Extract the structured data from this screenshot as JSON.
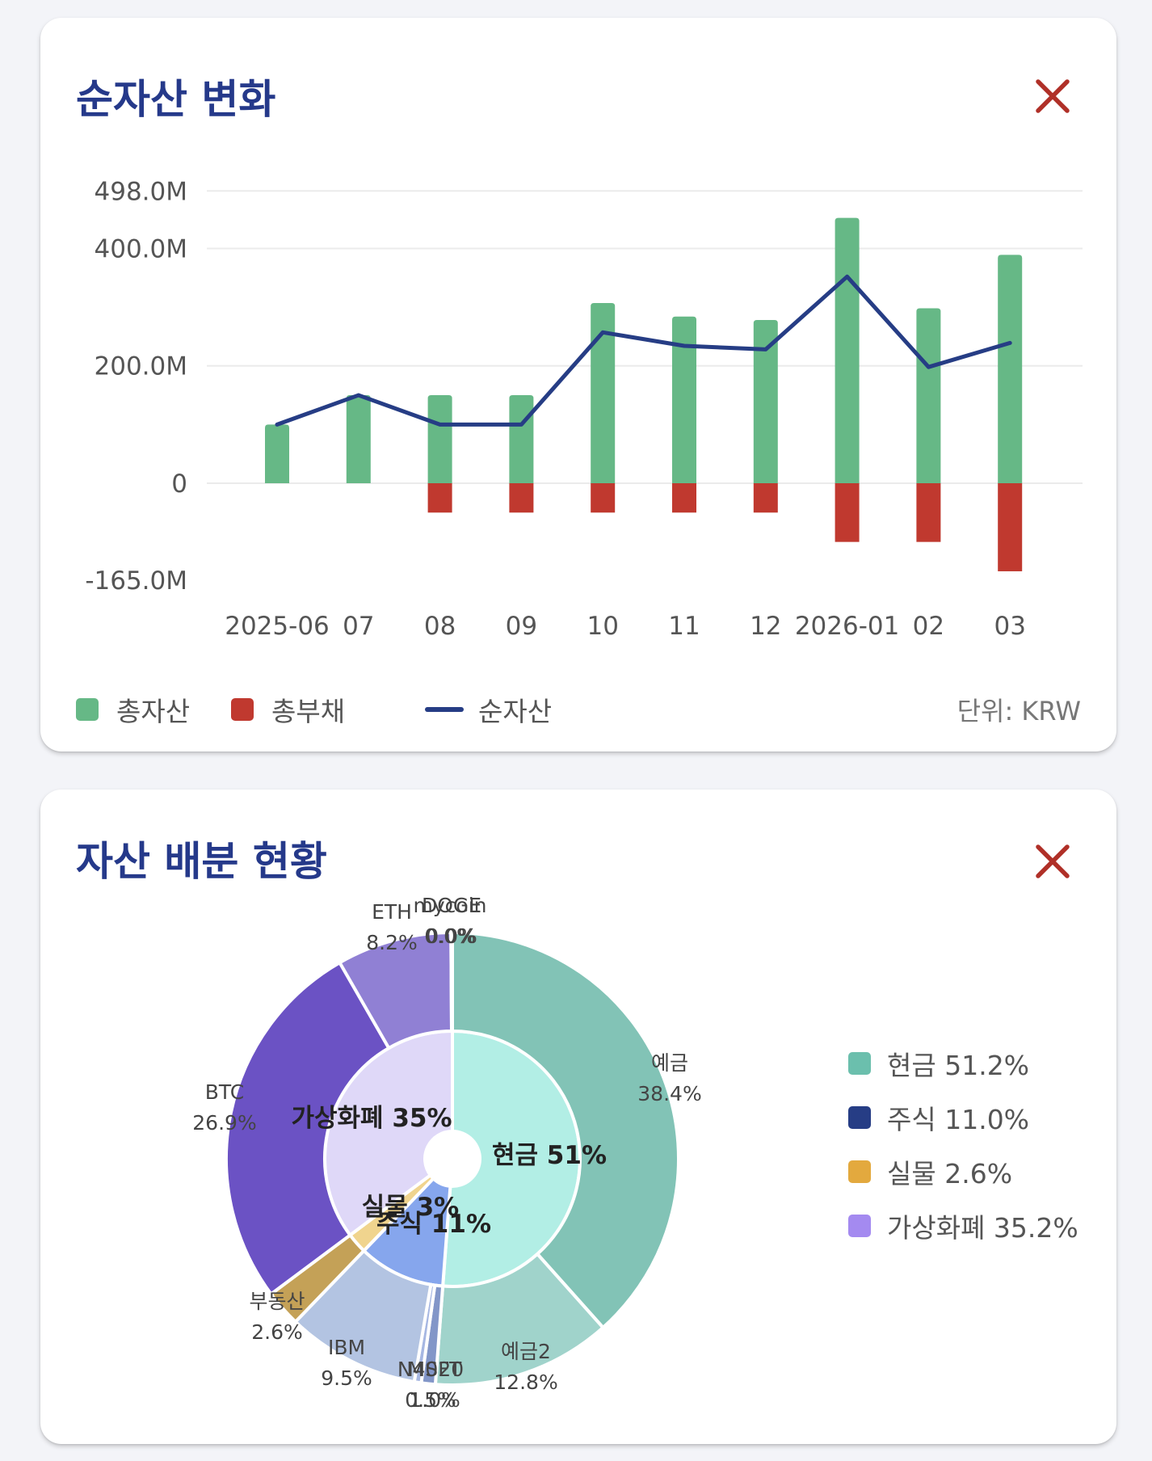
{
  "net_worth_card": {
    "title": "순자산 변화",
    "close_icon": "close-icon",
    "legend": [
      {
        "label": "총자산",
        "color": "#66b886",
        "kind": "box"
      },
      {
        "label": "총부채",
        "color": "#c0392f",
        "kind": "box"
      },
      {
        "label": "순자산",
        "color": "#263d85",
        "kind": "line"
      }
    ],
    "unit": "단위: KRW"
  },
  "allocation_card": {
    "title": "자산 배분 현황",
    "close_icon": "close-icon",
    "legend": [
      {
        "label": "현금 51.2%",
        "color": "#6bbfad"
      },
      {
        "label": "주식 11.0%",
        "color": "#263d85"
      },
      {
        "label": "실물 2.6%",
        "color": "#e3a93e"
      },
      {
        "label": "가상화폐 35.2%",
        "color": "#a48af0"
      }
    ]
  },
  "chart_data": [
    {
      "type": "bar",
      "title": "순자산 변화",
      "categories": [
        "2025-06",
        "07",
        "08",
        "09",
        "10",
        "11",
        "12",
        "2026-01",
        "02",
        "03"
      ],
      "y_tick_labels": [
        "498.0M",
        "400.0M",
        "200.0M",
        "0",
        "-165.0M"
      ],
      "y_ticks": [
        498,
        400,
        200,
        0,
        -165
      ],
      "ylim": [
        -165,
        498
      ],
      "y_unit": "M",
      "grid": true,
      "legend_position": "bottom-left",
      "series": [
        {
          "name": "총자산",
          "type": "bar",
          "color": "#66b886",
          "values": [
            100,
            150,
            150,
            150,
            307,
            284,
            278,
            452,
            298,
            389
          ]
        },
        {
          "name": "총부채",
          "type": "bar",
          "color": "#c0392f",
          "values": [
            0,
            0,
            -50,
            -50,
            -50,
            -50,
            -50,
            -100,
            -100,
            -150
          ]
        },
        {
          "name": "순자산",
          "type": "line",
          "color": "#263d85",
          "values": [
            100,
            150,
            100,
            100,
            257,
            234,
            228,
            352,
            198,
            239
          ]
        }
      ]
    },
    {
      "type": "pie",
      "title": "자산 배분 현황",
      "inner": [
        {
          "label": "현금 51%",
          "value": 51.2,
          "color": "#b2eee5"
        },
        {
          "label": "주식 11%",
          "value": 11.0,
          "color": "#86a6ed"
        },
        {
          "label": "실물 3%",
          "value": 2.6,
          "color": "#f0d48e"
        },
        {
          "label": "가상화폐 35%",
          "value": 35.2,
          "color": "#dfd8f8"
        }
      ],
      "outer": [
        {
          "name": "예금",
          "value": 38.4,
          "pct": "38.4%",
          "color": "#82c3b6"
        },
        {
          "name": "예금2",
          "value": 12.8,
          "pct": "12.8%",
          "color": "#a0d3cb"
        },
        {
          "name": "MSFT",
          "value": 1.0,
          "pct": "1.0%",
          "color": "#8296c8"
        },
        {
          "name": "N4020",
          "value": 0.5,
          "pct": "0.5%",
          "color": "#a6b7e2"
        },
        {
          "name": "IBM",
          "value": 9.5,
          "pct": "9.5%",
          "color": "#b3c4e2"
        },
        {
          "name": "부동산",
          "value": 2.6,
          "pct": "2.6%",
          "color": "#c4a157"
        },
        {
          "name": "BTC",
          "value": 26.9,
          "pct": "26.9%",
          "color": "#6b52c4"
        },
        {
          "name": "ETH",
          "value": 8.2,
          "pct": "8.2%",
          "color": "#9080d4"
        },
        {
          "name": "mycoin",
          "value": 0.05,
          "pct": "0.0%",
          "color": "#b1a4e8"
        },
        {
          "name": "DOGE",
          "value": 0.05,
          "pct": "0.0%",
          "color": "#c5b9ef"
        }
      ]
    }
  ]
}
